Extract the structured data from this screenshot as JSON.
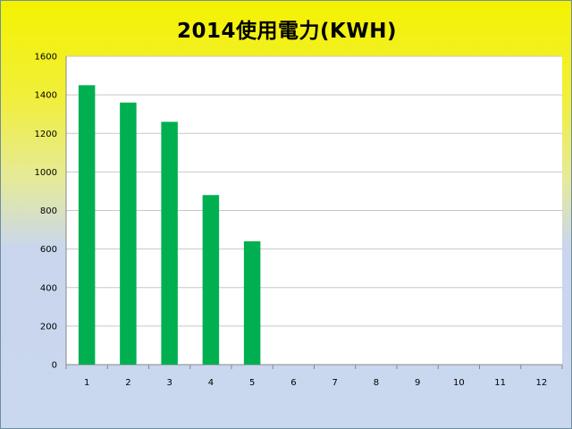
{
  "chart_data": {
    "type": "bar",
    "title": "2014使用電力(KWH)",
    "xlabel": "",
    "ylabel": "",
    "categories": [
      "1",
      "2",
      "3",
      "4",
      "5",
      "6",
      "7",
      "8",
      "9",
      "10",
      "11",
      "12"
    ],
    "values": [
      1450,
      1360,
      1260,
      880,
      640,
      0,
      0,
      0,
      0,
      0,
      0,
      0
    ],
    "ylim": [
      0,
      1600
    ],
    "yticks": [
      "0",
      "200",
      "400",
      "600",
      "800",
      "1000",
      "1200",
      "1400",
      "1600"
    ],
    "grid": true,
    "legend": "none",
    "colors": {
      "bar": "#00b050",
      "plot_background": "#ffffff",
      "gridline": "#c8c8c8"
    }
  }
}
